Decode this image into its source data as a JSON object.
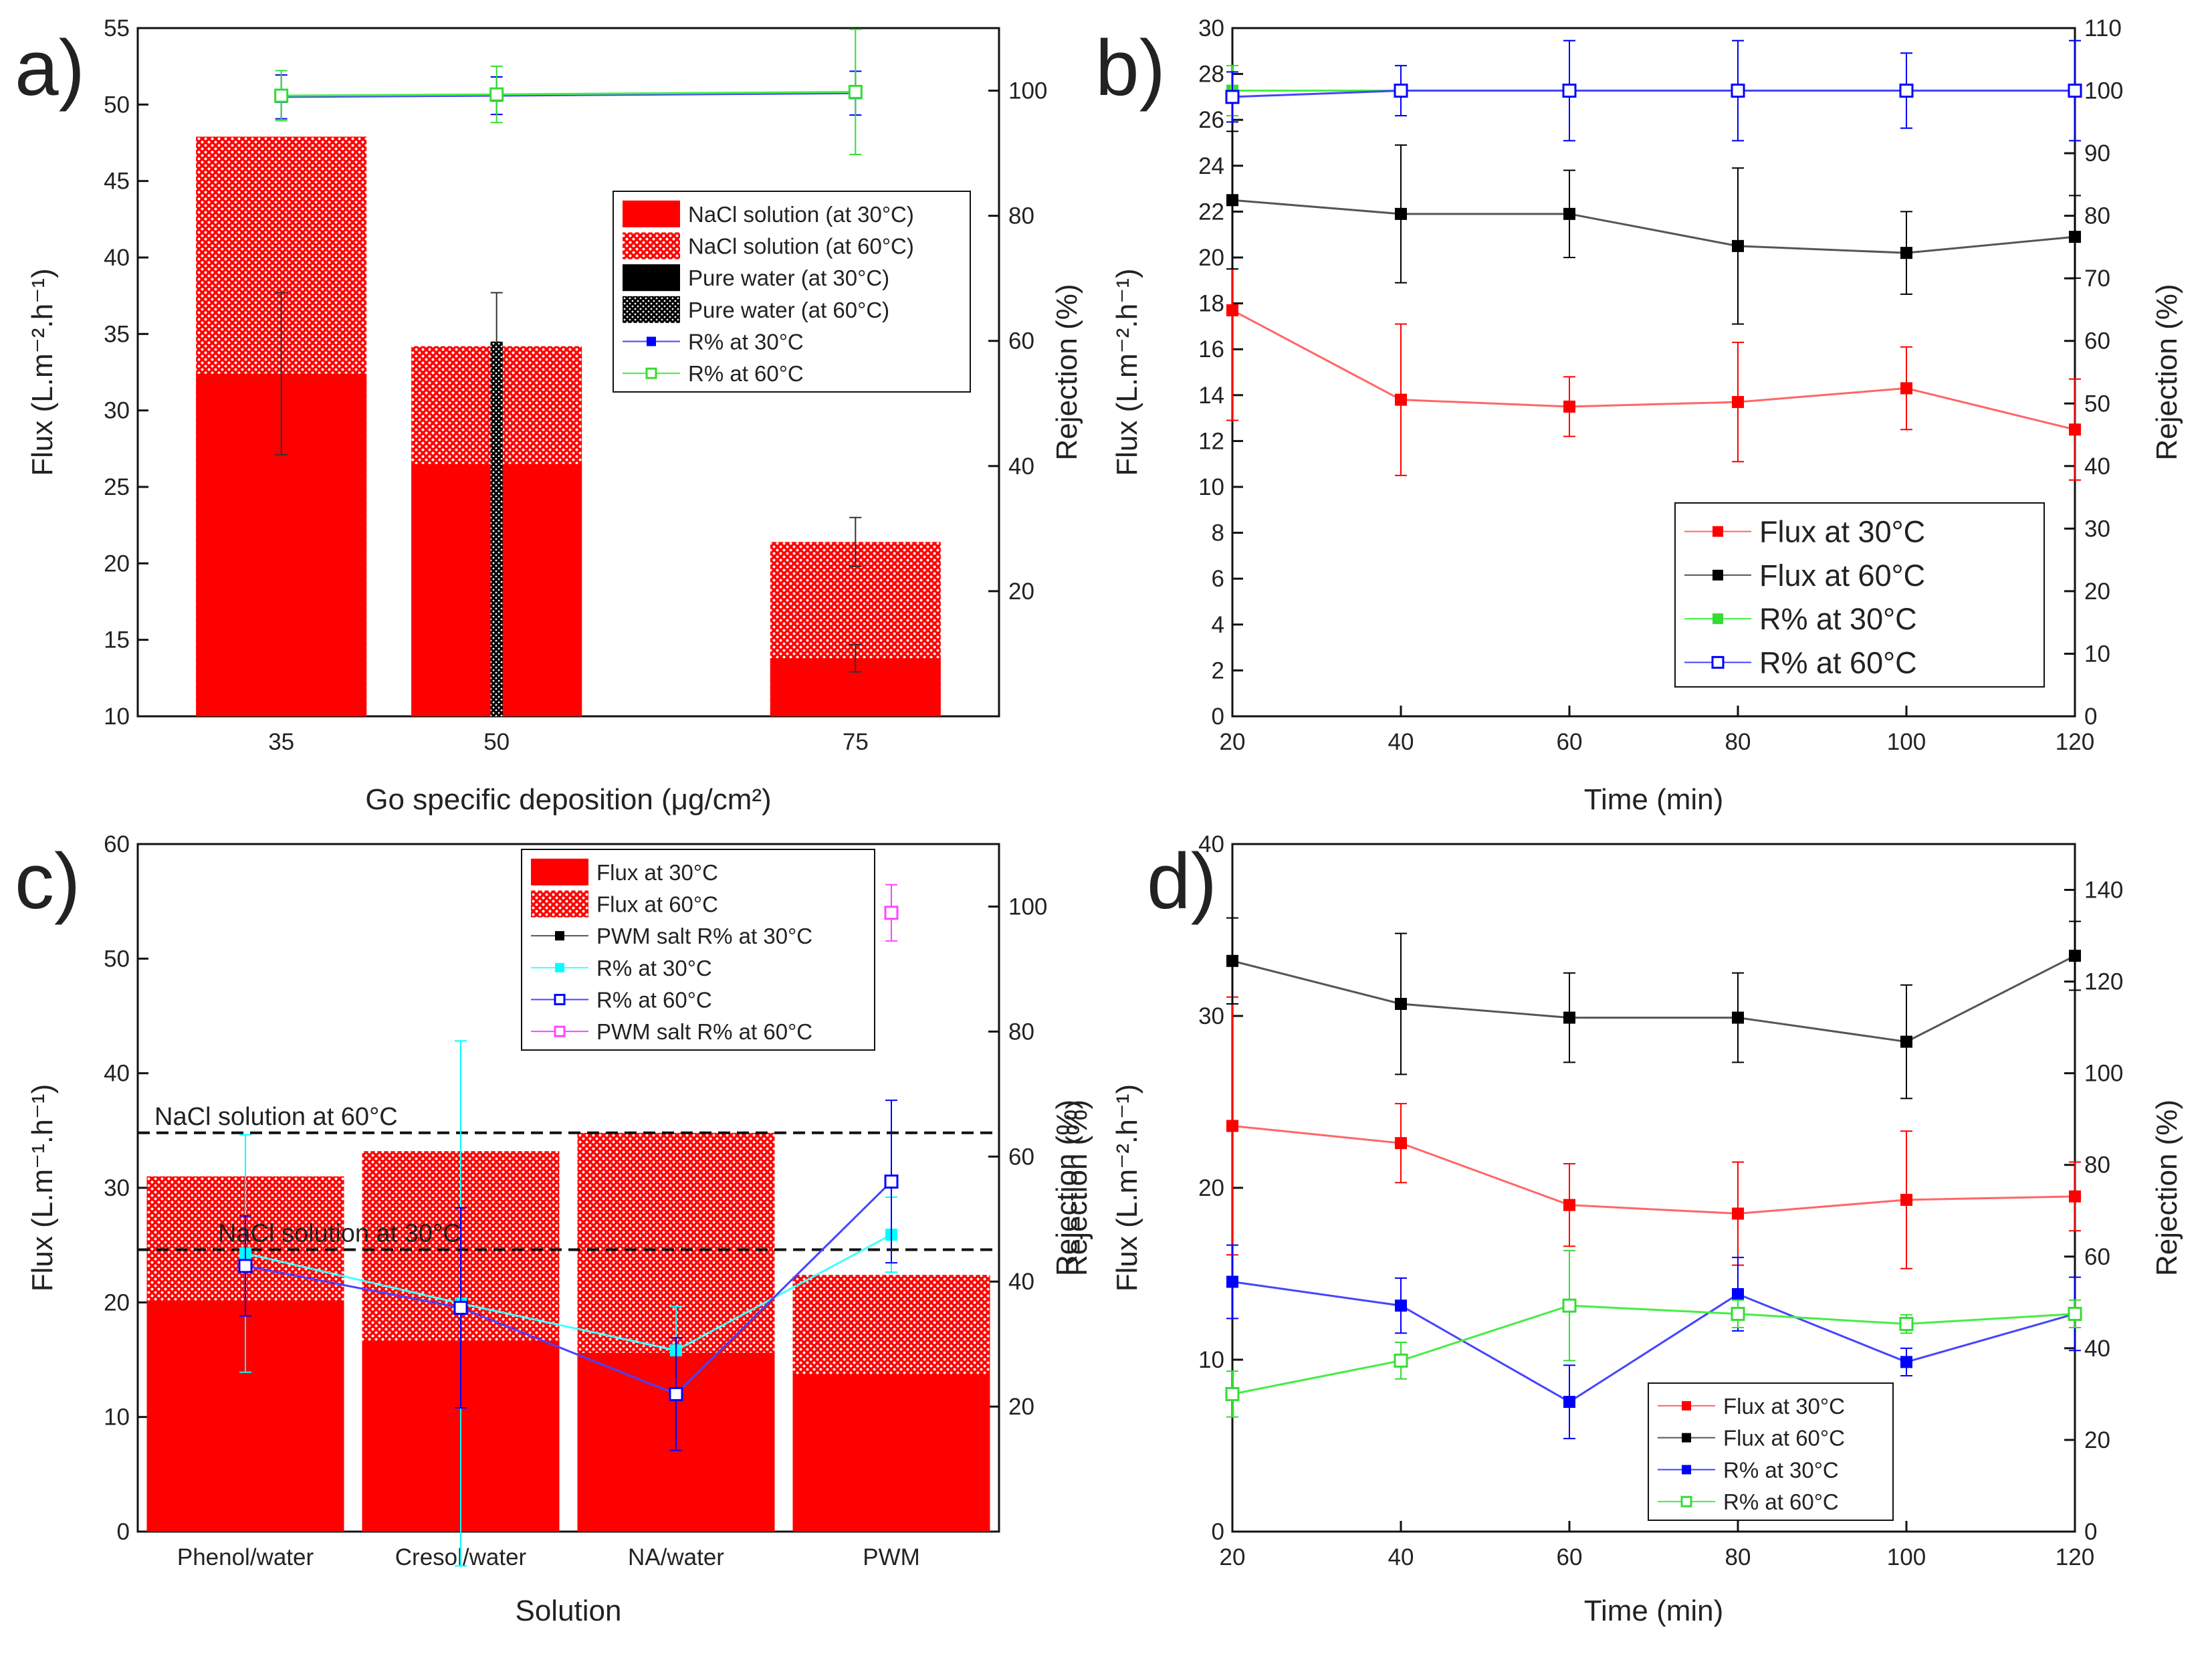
{
  "colors": {
    "red": "#ff0000",
    "black": "#000000",
    "blue": "#0000ff",
    "green": "#33dd33",
    "cyan": "#00ffff",
    "magenta": "#ff44ff",
    "line_red": "#ff6666",
    "line_black": "#555555",
    "line_blue": "#4444ff",
    "line_green": "#44ee44",
    "line_cyan": "#44ffff"
  },
  "chart_data": [
    {
      "panel": "a)",
      "type": "bar",
      "categories": [
        "35",
        "50",
        "75"
      ],
      "x_values": [
        35,
        50,
        75
      ],
      "xlabel": "Go specific deposition (μg/cm²)",
      "ylabel": "Flux (L.m⁻².h⁻¹)",
      "y2label": "",
      "ylim": [
        10,
        55
      ],
      "y2lim": [
        0,
        110
      ],
      "y_ticks": [
        10,
        15,
        20,
        25,
        30,
        35,
        40,
        45,
        50,
        55
      ],
      "y2_ticks": [
        20,
        40,
        60,
        80,
        100
      ],
      "bar_series": [
        {
          "name": "NaCl solution (at 30°C)",
          "values": [
            32.4,
            26.5,
            13.8
          ],
          "errors": [
            5.3,
            null,
            0.9
          ],
          "color": "#ff0000",
          "pattern": "solid"
        },
        {
          "name": "NaCl solution (at 60°C)",
          "values": [
            47.9,
            34.2,
            21.4
          ],
          "errors": [
            null,
            3.5,
            1.6
          ],
          "color": "#ff0000",
          "pattern": "dots"
        },
        {
          "name": "Pure water (at 30°C)",
          "values": [
            null,
            34.5,
            null
          ],
          "errors": [
            null,
            null,
            null
          ],
          "color": "#000000",
          "pattern": "solid"
        },
        {
          "name": "Pure water (at 60°C)",
          "values": [
            null,
            34.5,
            null
          ],
          "errors": [
            null,
            null,
            null
          ],
          "color": "#000000",
          "pattern": "dots"
        }
      ],
      "line_series": [
        {
          "name": "R% at 30°C",
          "axis": "right",
          "x": [
            35,
            50,
            75
          ],
          "values": [
            99.0,
            99.2,
            99.6
          ],
          "errors": [
            3.5,
            3.0,
            3.5
          ],
          "color": "#0000ff",
          "line": "#4444ff",
          "marker": "filled-square"
        },
        {
          "name": "R% at 60°C",
          "axis": "right",
          "x": [
            35,
            50,
            75
          ],
          "values": [
            99.2,
            99.4,
            99.8
          ],
          "errors": [
            4.0,
            4.5,
            10.0
          ],
          "color": "#33dd33",
          "line": "#44ee44",
          "marker": "open-square"
        }
      ],
      "legend": "top-right"
    },
    {
      "panel": "b)",
      "type": "line",
      "x": [
        20,
        40,
        60,
        80,
        100,
        120
      ],
      "xlabel": "Time (min)",
      "ylabel": "Flux (L.m⁻².h⁻¹)",
      "y2label": "Rejection (%)",
      "ylim": [
        0,
        30
      ],
      "y2lim": [
        0,
        110
      ],
      "y_ticks": [
        0,
        2,
        4,
        6,
        8,
        10,
        12,
        14,
        16,
        18,
        20,
        22,
        24,
        26,
        28,
        30
      ],
      "y2_ticks": [
        0,
        10,
        20,
        30,
        40,
        50,
        60,
        70,
        80,
        90,
        100,
        110
      ],
      "x_ticks": [
        20,
        40,
        60,
        80,
        100,
        120
      ],
      "series": [
        {
          "name": "Flux at 30°C",
          "axis": "left",
          "values": [
            17.7,
            13.8,
            13.5,
            13.7,
            14.3,
            12.5
          ],
          "errors": [
            4.8,
            3.3,
            1.3,
            2.6,
            1.8,
            2.2
          ],
          "color": "#ff0000",
          "line": "#ff6666",
          "marker": "filled-square"
        },
        {
          "name": "Flux at 60°C",
          "axis": "left",
          "values": [
            22.5,
            21.9,
            21.9,
            20.5,
            20.2,
            20.9
          ],
          "errors": [
            3.0,
            3.0,
            1.9,
            3.4,
            1.8,
            1.8
          ],
          "color": "#000000",
          "line": "#555555",
          "marker": "filled-square"
        },
        {
          "name": "R% at 30°C",
          "axis": "right",
          "values": [
            100,
            100,
            100,
            100,
            100,
            100
          ],
          "errors": [
            4,
            4,
            8,
            8,
            6,
            8
          ],
          "color": "#33dd33",
          "line": "#44ee44",
          "marker": "filled-square"
        },
        {
          "name": "R% at 60°C",
          "axis": "right",
          "values": [
            99,
            100,
            100,
            100,
            100,
            100
          ],
          "errors": [
            4,
            4,
            8,
            8,
            6,
            8
          ],
          "color": "#0000ff",
          "line": "#4444ff",
          "marker": "open-square"
        }
      ],
      "legend": "bottom-right"
    },
    {
      "panel": "c)",
      "type": "bar",
      "categories": [
        "Phenol/water",
        "Cresol/water",
        "NA/water",
        "PWM"
      ],
      "xlabel": "Solution",
      "ylabel": "Flux (L.m⁻¹.h⁻¹)",
      "y2label": "Rejection (%)",
      "ylim": [
        0,
        60
      ],
      "y2lim": [
        0,
        110
      ],
      "y_ticks": [
        0,
        10,
        20,
        30,
        40,
        50,
        60
      ],
      "y2_ticks": [
        20,
        40,
        60,
        80,
        100
      ],
      "bar_series": [
        {
          "name": "Flux at 30°C",
          "values": [
            20.1,
            16.6,
            15.6,
            13.7
          ],
          "color": "#ff0000",
          "pattern": "solid"
        },
        {
          "name": "Flux at 60°C",
          "values": [
            31.0,
            33.2,
            34.8,
            22.4
          ],
          "color": "#ff0000",
          "pattern": "dots"
        }
      ],
      "line_series": [
        {
          "name": "PWM salt R% at 30°C",
          "axis": "right",
          "values": [
            null,
            null,
            null,
            null
          ],
          "errors": [
            null,
            null,
            null,
            null
          ],
          "color": "#000000",
          "line": "#555555",
          "marker": "filled-square"
        },
        {
          "name": "R% at 30°C",
          "axis": "right",
          "values": [
            44.5,
            36.5,
            29.0,
            47.5
          ],
          "errors": [
            19,
            42,
            7,
            6
          ],
          "color": "#00ffff",
          "line": "#44ffff",
          "marker": "filled-square"
        },
        {
          "name": "R% at 60°C",
          "axis": "right",
          "values": [
            42.5,
            35.8,
            22.0,
            56.0
          ],
          "errors": [
            8,
            16,
            9,
            13
          ],
          "color": "#0000ff",
          "line": "#4444ff",
          "marker": "open-square"
        },
        {
          "name": "PWM salt R% at 60°C",
          "axis": "right",
          "values": [
            null,
            null,
            null,
            99.0
          ],
          "errors": [
            null,
            null,
            null,
            4.5
          ],
          "color": "#ff44ff",
          "line": "#ff44ff",
          "marker": "open-square"
        }
      ],
      "reference_lines": [
        {
          "label": "NaCl solution at 60°C",
          "value": 34.8
        },
        {
          "label": "NaCl solution at 30°C",
          "value": 24.6
        }
      ],
      "legend": "top-right"
    },
    {
      "panel": "d)",
      "type": "line",
      "x": [
        20,
        40,
        60,
        80,
        100,
        120
      ],
      "xlabel": "Time (min)",
      "ylabel": "Flux (L.m⁻².h⁻¹)",
      "y2label": "Rejection (%)",
      "ylim": [
        0,
        40
      ],
      "y2lim": [
        0,
        150
      ],
      "y_ticks": [
        0,
        10,
        20,
        30,
        40
      ],
      "y2_ticks": [
        0,
        20,
        40,
        60,
        80,
        100,
        120,
        140
      ],
      "x_ticks": [
        20,
        40,
        60,
        80,
        100,
        120
      ],
      "series": [
        {
          "name": "Flux at 30°C",
          "axis": "left",
          "values": [
            23.6,
            22.6,
            19.0,
            18.5,
            19.3,
            19.5
          ],
          "errors": [
            7.5,
            2.3,
            2.4,
            3.0,
            4.0,
            2.0
          ],
          "color": "#ff0000",
          "line": "#ff6666",
          "marker": "filled-square"
        },
        {
          "name": "Flux at 60°C",
          "axis": "left",
          "values": [
            33.2,
            30.7,
            29.9,
            29.9,
            28.5,
            33.5
          ],
          "errors": [
            2.5,
            4.1,
            2.6,
            2.6,
            3.3,
            2.0
          ],
          "color": "#000000",
          "line": "#555555",
          "marker": "filled-square"
        },
        {
          "name": "R% at 30°C",
          "axis": "right",
          "values": [
            54.5,
            49.3,
            28.3,
            51.8,
            37.0,
            47.5
          ],
          "errors": [
            8,
            6,
            8,
            8,
            3,
            8
          ],
          "color": "#0000ff",
          "line": "#4444ff",
          "marker": "filled-square"
        },
        {
          "name": "R% at 60°C",
          "axis": "right",
          "values": [
            30.0,
            37.3,
            49.3,
            47.5,
            45.3,
            47.5
          ],
          "errors": [
            5,
            4,
            12,
            3,
            2,
            3
          ],
          "color": "#33dd33",
          "line": "#44ee44",
          "marker": "open-square"
        }
      ],
      "legend": "bottom-center"
    }
  ]
}
